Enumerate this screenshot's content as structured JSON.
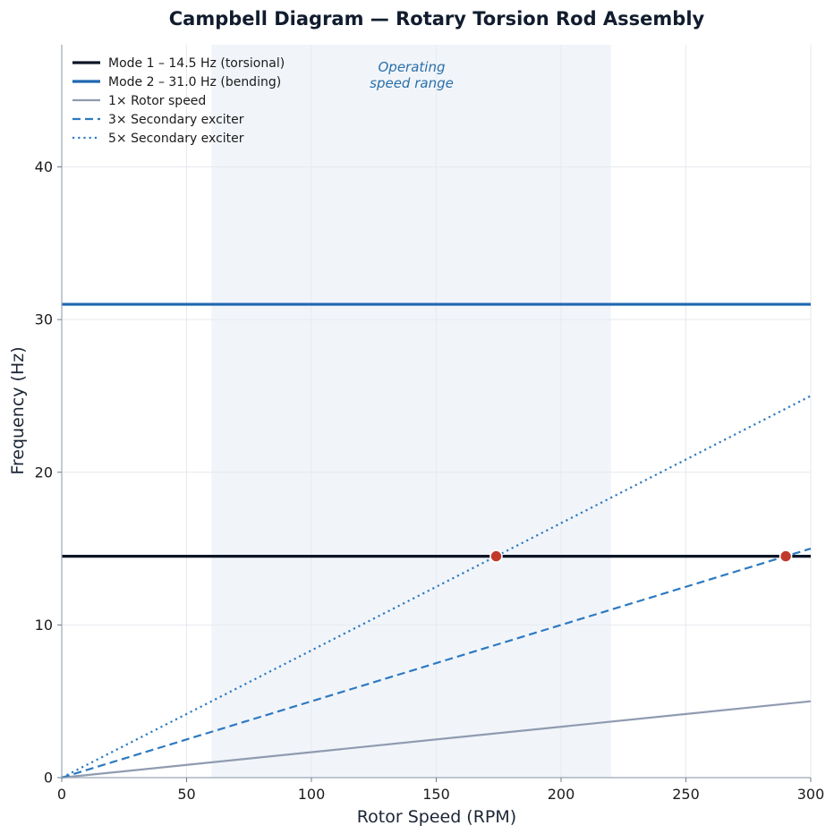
{
  "chart_data": {
    "type": "line",
    "title": "Campbell Diagram — Rotary Torsion Rod Assembly",
    "xlabel": "Rotor Speed (RPM)",
    "ylabel": "Frequency (Hz)",
    "xlim": [
      0,
      300
    ],
    "ylim": [
      0,
      48
    ],
    "xticks": [
      0,
      50,
      100,
      150,
      200,
      250,
      300
    ],
    "yticks": [
      0,
      10,
      20,
      30,
      40
    ],
    "grid": true,
    "legend_position": "top-left",
    "operating_range": {
      "x": [
        60,
        220
      ],
      "label_line1": "Operating",
      "label_line2": "speed range",
      "color": "#e3ebf5"
    },
    "series": [
      {
        "name": "Mode 1 – 14.5 Hz (torsional)",
        "kind": "constant",
        "y": 14.5,
        "color": "#0d1626",
        "style": "solid",
        "width": 3.2
      },
      {
        "name": "Mode 2 – 31.0 Hz (bending)",
        "kind": "constant",
        "y": 31.0,
        "color": "#1f67b1",
        "style": "solid",
        "width": 3.2
      },
      {
        "name": "1× Rotor speed",
        "kind": "order",
        "order": 1,
        "x": [
          0,
          300
        ],
        "y": [
          0,
          5.0
        ],
        "color": "#8f9bb0",
        "style": "solid",
        "width": 2.2
      },
      {
        "name": "3× Secondary exciter",
        "kind": "order",
        "order": 3,
        "x": [
          0,
          300
        ],
        "y": [
          0,
          15.0
        ],
        "color": "#2d79c1",
        "style": "dashed",
        "width": 2.2
      },
      {
        "name": "5× Secondary exciter",
        "kind": "order",
        "order": 5,
        "x": [
          0,
          300
        ],
        "y": [
          0,
          25.0
        ],
        "color": "#2d79c1",
        "style": "dotted",
        "width": 2.2
      }
    ],
    "intersections": [
      {
        "x": 174,
        "y": 14.5,
        "color": "#c0392b"
      },
      {
        "x": 290,
        "y": 14.5,
        "color": "#c0392b"
      }
    ]
  }
}
